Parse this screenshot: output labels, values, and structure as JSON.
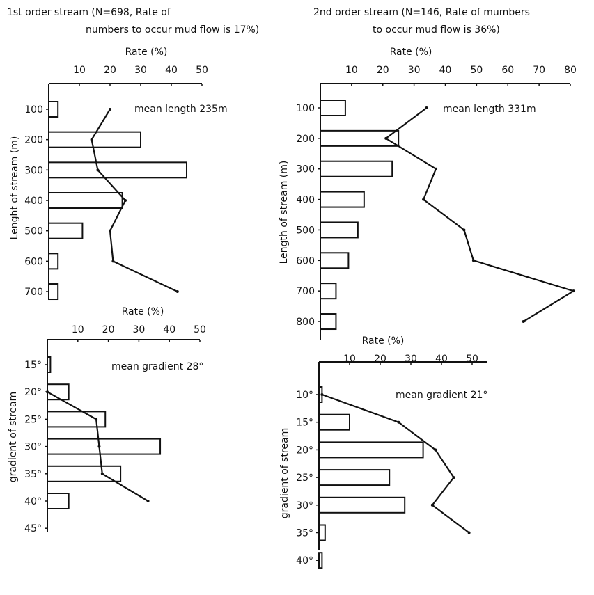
{
  "headings": {
    "left_line1": "1st order stream (N=698, Rate of",
    "left_line2": "numbers to occur mud flow is 17%)",
    "right_line1": "2nd order stream (N=146, Rate of mumbers",
    "right_line2": "to occur mud flow is 36%)"
  },
  "chart_data": [
    {
      "id": "p1",
      "type": "bar",
      "stream_order": "1st order stream",
      "title": "",
      "xlabel": "Rate (%)",
      "ylabel": "Lenght of stream (m)",
      "xlim": [
        0,
        50
      ],
      "x_ticks": [
        "10",
        "20",
        "30",
        "40",
        "50"
      ],
      "y_ticks": [
        "100",
        "200",
        "300",
        "400",
        "500",
        "600",
        "700"
      ],
      "annotation": "mean length 235m",
      "categories": [
        100,
        200,
        300,
        400,
        500,
        600,
        700
      ],
      "series": [
        {
          "kind": "bars",
          "values": [
            3,
            30,
            45,
            24,
            11,
            3,
            3
          ]
        },
        {
          "kind": "line",
          "values": [
            20,
            14,
            16,
            25,
            20,
            21,
            42
          ]
        }
      ]
    },
    {
      "id": "p2",
      "type": "bar",
      "stream_order": "2nd order stream",
      "title": "",
      "xlabel": "Rate (%)",
      "ylabel": "Length of stream (m)",
      "xlim": [
        0,
        80
      ],
      "x_ticks": [
        "10",
        "20",
        "30",
        "40",
        "50",
        "60",
        "70",
        "80"
      ],
      "y_ticks": [
        "100",
        "200",
        "300",
        "400",
        "500",
        "600",
        "700",
        "800"
      ],
      "annotation": "mean length 331m",
      "categories": [
        100,
        200,
        300,
        400,
        500,
        600,
        700,
        800
      ],
      "series": [
        {
          "kind": "bars",
          "values": [
            8,
            25,
            23,
            14,
            12,
            9,
            5,
            5
          ]
        },
        {
          "kind": "line",
          "values": [
            34,
            21,
            37,
            33,
            46,
            49,
            81,
            65
          ]
        }
      ]
    },
    {
      "id": "p3",
      "type": "bar",
      "stream_order": "1st order stream",
      "title": "",
      "xlabel": "Rate (%)",
      "ylabel": "gradient of stream",
      "xlim": [
        0,
        50
      ],
      "x_ticks": [
        "10",
        "20",
        "30",
        "40",
        "50"
      ],
      "y_ticks": [
        "15°",
        "20°",
        "25°",
        "30°",
        "35°",
        "40°",
        "45°"
      ],
      "annotation": "mean gradient 28°",
      "categories": [
        15,
        20,
        25,
        30,
        35,
        40,
        45
      ],
      "series": [
        {
          "kind": "bars",
          "values": [
            1,
            7,
            19,
            37,
            24,
            7,
            null
          ]
        },
        {
          "kind": "line",
          "values": [
            null,
            0,
            16,
            17,
            18,
            33,
            null
          ]
        }
      ]
    },
    {
      "id": "p4",
      "type": "bar",
      "stream_order": "2nd order stream",
      "title": "",
      "xlabel": "Rate (%)",
      "ylabel": "gradient of stream",
      "xlim": [
        0,
        55
      ],
      "x_ticks": [
        "10",
        "20",
        "30",
        "40",
        "50"
      ],
      "y_ticks": [
        "10°",
        "15°",
        "20°",
        "25°",
        "30°",
        "35°",
        "40°"
      ],
      "annotation": "mean gradient 21°",
      "categories": [
        10,
        15,
        20,
        25,
        30,
        35,
        40
      ],
      "series": [
        {
          "kind": "bars",
          "values": [
            1,
            10,
            34,
            23,
            28,
            2,
            1
          ]
        },
        {
          "kind": "line",
          "values": [
            1,
            26,
            38,
            44,
            37,
            49,
            null
          ]
        }
      ]
    }
  ]
}
